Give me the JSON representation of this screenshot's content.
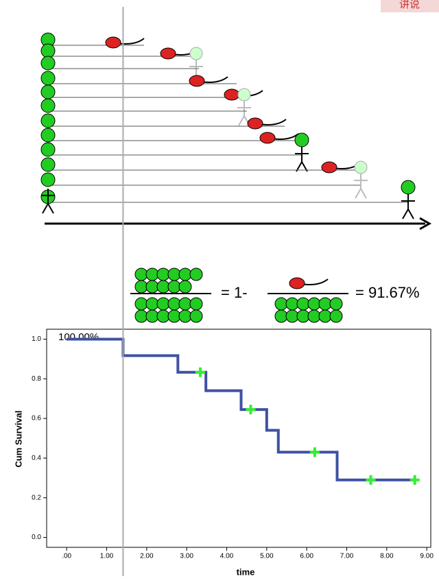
{
  "brand": "讲说",
  "formula": {
    "middle": "= 1-",
    "result": "= 91.67%"
  },
  "chart_data": {
    "type": "step",
    "annotation": "100.00%",
    "x_label": "time",
    "y_label": "Cum Survival",
    "series": [
      {
        "color": "#3f51a3",
        "x": [
          0,
          1.41,
          2.78,
          3.48,
          4.36,
          5.0,
          5.29,
          6.76,
          8.7
        ],
        "values": [
          1.0,
          0.917,
          0.833,
          0.74,
          0.645,
          0.54,
          0.43,
          0.29,
          0.29
        ]
      }
    ],
    "censored": {
      "color": "#33ee33",
      "x": [
        3.34,
        4.6,
        6.2,
        7.6,
        8.7
      ],
      "values": [
        0.833,
        0.645,
        0.43,
        0.29,
        0.29
      ]
    },
    "xlim": [
      -0.5,
      9.1
    ],
    "ylim": [
      -0.05,
      1.05
    ],
    "xticks": [
      {
        "value": 0,
        "label": ".00"
      },
      {
        "value": 1,
        "label": "1.00"
      },
      {
        "value": 2,
        "label": "2.00"
      },
      {
        "value": 3,
        "label": "3.00"
      },
      {
        "value": 4,
        "label": "4.00"
      },
      {
        "value": 5,
        "label": "5.00"
      },
      {
        "value": 6,
        "label": "6.00"
      },
      {
        "value": 7,
        "label": "7.00"
      },
      {
        "value": 8,
        "label": "8.00"
      },
      {
        "value": 9,
        "label": "9.00"
      }
    ],
    "yticks": [
      {
        "value": 0,
        "label": "0.0"
      },
      {
        "value": 0.2,
        "label": "0.2"
      },
      {
        "value": 0.4,
        "label": "0.4"
      },
      {
        "value": 0.6,
        "label": "0.6"
      },
      {
        "value": 0.8,
        "label": "0.8"
      },
      {
        "value": 1,
        "label": "1.0"
      }
    ]
  }
}
